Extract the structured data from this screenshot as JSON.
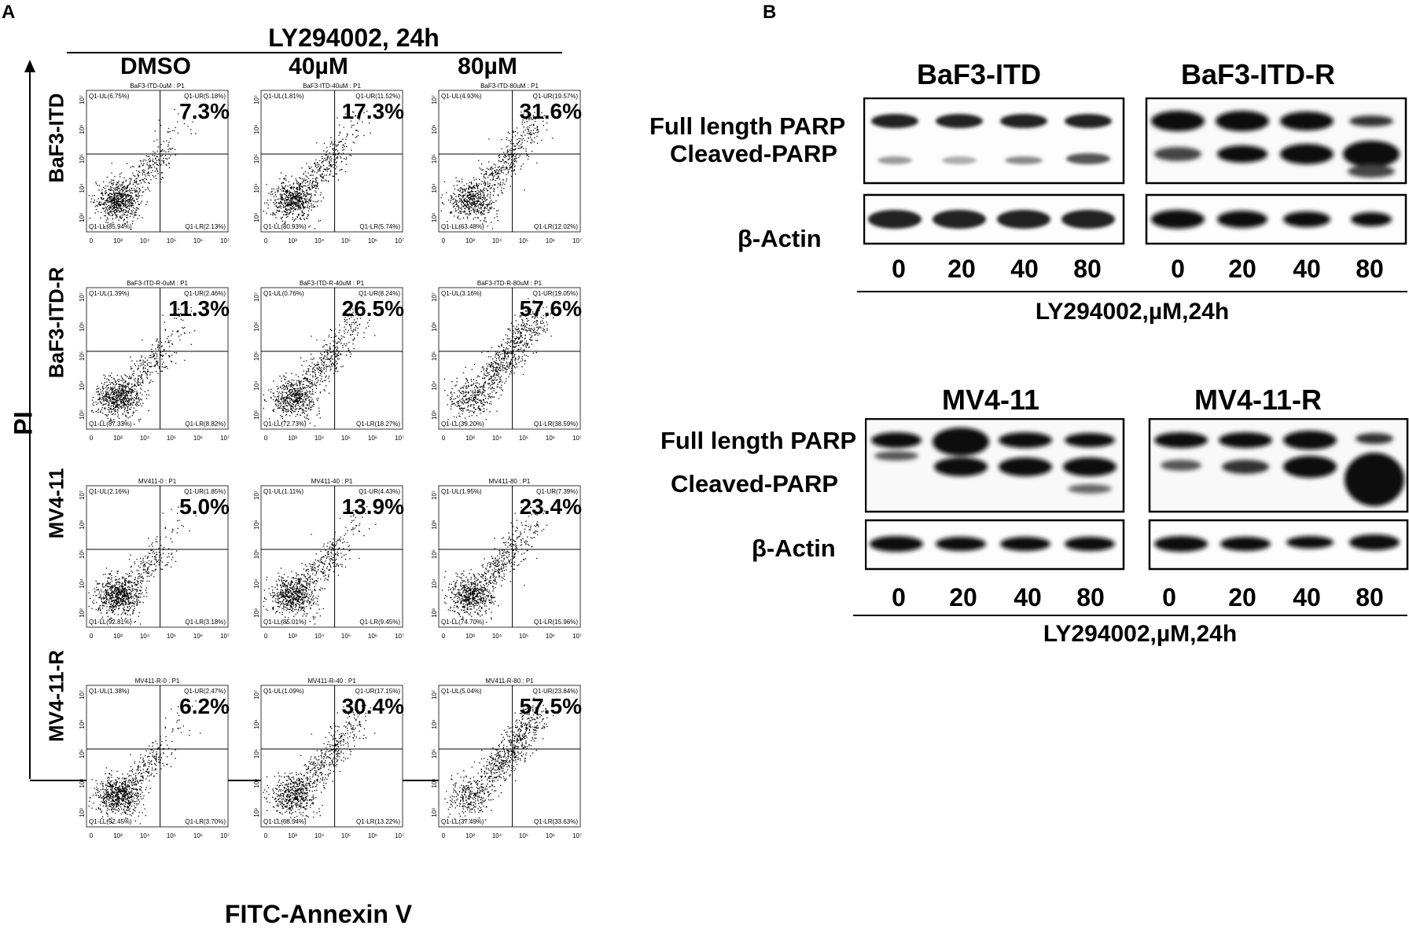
{
  "panel_a": {
    "letter": "A",
    "treatment_header": "LY294002, 24h",
    "conditions": [
      "DMSO",
      "40µM",
      "80µM"
    ],
    "y_axis_label": "PI",
    "x_axis_label": "FITC-Annexin V",
    "rows": [
      {
        "cell_line": "BaF3-ITD",
        "plots": [
          {
            "title": "BaF3-ITD-0uM : P1",
            "big_pct": "7.3%",
            "ul": "Q1-UL(6.75%)",
            "ur": "Q1-UR(5.18%)",
            "ll": "Q1-LL(85.94%)",
            "lr": "Q1-LR(2.13%)"
          },
          {
            "title": "BaF3-ITD-40uM : P1",
            "big_pct": "17.3%",
            "ul": "Q1-UL(1.81%)",
            "ur": "Q1-UR(11.52%)",
            "ll": "Q1-LL(80.93%)",
            "lr": "Q1-LR(5.74%)"
          },
          {
            "title": "BaF3-ITD-80uM : P1",
            "big_pct": "31.6%",
            "ul": "Q1-UL(4.93%)",
            "ur": "Q1-UR(19.57%)",
            "ll": "Q1-LL(63.48%)",
            "lr": "Q1-LR(12.02%)"
          }
        ]
      },
      {
        "cell_line": "BaF3-ITD-R",
        "plots": [
          {
            "title": "BaF3-ITD-R-0uM : P1",
            "big_pct": "11.3%",
            "ul": "Q1-UL(1.39%)",
            "ur": "Q1-UR(2.46%)",
            "ll": "Q1-LL(87.33%)",
            "lr": "Q1-LR(8.82%)"
          },
          {
            "title": "BaF3-ITD-R-40uM : P1",
            "big_pct": "26.5%",
            "ul": "Q1-UL(0.76%)",
            "ur": "Q1-UR(8.24%)",
            "ll": "Q1-LL(72.73%)",
            "lr": "Q1-LR(18.27%)"
          },
          {
            "title": "BaF3-ITD-R-80uM : P1",
            "big_pct": "57.6%",
            "ul": "Q1-UL(3.16%)",
            "ur": "Q1-UR(19.05%)",
            "ll": "Q1-LL(39.20%)",
            "lr": "Q1-LR(38.59%)"
          }
        ]
      },
      {
        "cell_line": "MV4-11",
        "plots": [
          {
            "title": "MV411-0 : P1",
            "big_pct": "5.0%",
            "ul": "Q1-UL(2.16%)",
            "ur": "Q1-UR(1.85%)",
            "ll": "Q1-LL(92.81%)",
            "lr": "Q1-LR(3.18%)"
          },
          {
            "title": "MV411-40 : P1",
            "big_pct": "13.9%",
            "ul": "Q1-UL(1.11%)",
            "ur": "Q1-UR(4.43%)",
            "ll": "Q1-LL(85.01%)",
            "lr": "Q1-LR(9.45%)"
          },
          {
            "title": "MV411-80 : P1",
            "big_pct": "23.4%",
            "ul": "Q1-UL(1.95%)",
            "ur": "Q1-UR(7.39%)",
            "ll": "Q1-LL(74.70%)",
            "lr": "Q1-LR(15.96%)"
          }
        ]
      },
      {
        "cell_line": "MV4-11-R",
        "plots": [
          {
            "title": "MV411-R-0 : P1",
            "big_pct": "6.2%",
            "ul": "Q1-UL(1.38%)",
            "ur": "Q1-UR(2.47%)",
            "ll": "Q1-LL(92.45%)",
            "lr": "Q1-LR(3.70%)"
          },
          {
            "title": "MV411-R-40 : P1",
            "big_pct": "30.4%",
            "ul": "Q1-UL(1.09%)",
            "ur": "Q1-UR(17.15%)",
            "ll": "Q1-LL(68.54%)",
            "lr": "Q1-LR(13.22%)"
          },
          {
            "title": "MV411-R-80 : P1",
            "big_pct": "57.5%",
            "ul": "Q1-UL(5.04%)",
            "ur": "Q1-UR(23.84%)",
            "ll": "Q1-LL(37.49%)",
            "lr": "Q1-LR(33.63%)"
          }
        ]
      }
    ],
    "x_ticks": [
      "0",
      "10³",
      "10⁴",
      "10⁵",
      "10⁶",
      "10⁷"
    ],
    "y_ticks": [
      "10³",
      "10⁴",
      "10⁵",
      "10⁶",
      "10⁷"
    ]
  },
  "panel_b": {
    "letter": "B",
    "top": {
      "left_title": "BaF3-ITD",
      "right_title": "BaF3-ITD-R",
      "label_full": "Full length PARP",
      "label_cleaved": "Cleaved-PARP",
      "label_actin": "β-Actin",
      "lanes": [
        "0",
        "20",
        "40",
        "80",
        "0",
        "20",
        "40",
        "80"
      ],
      "xlabel": "LY294002,µM,24h"
    },
    "bottom": {
      "left_title": "MV4-11",
      "right_title": "MV4-11-R",
      "label_full": "Full length PARP",
      "label_cleaved": "Cleaved-PARP",
      "label_actin": "β-Actin",
      "lanes": [
        "0",
        "20",
        "40",
        "80",
        "0",
        "20",
        "40",
        "80"
      ],
      "xlabel": "LY294002,µM,24h"
    }
  }
}
